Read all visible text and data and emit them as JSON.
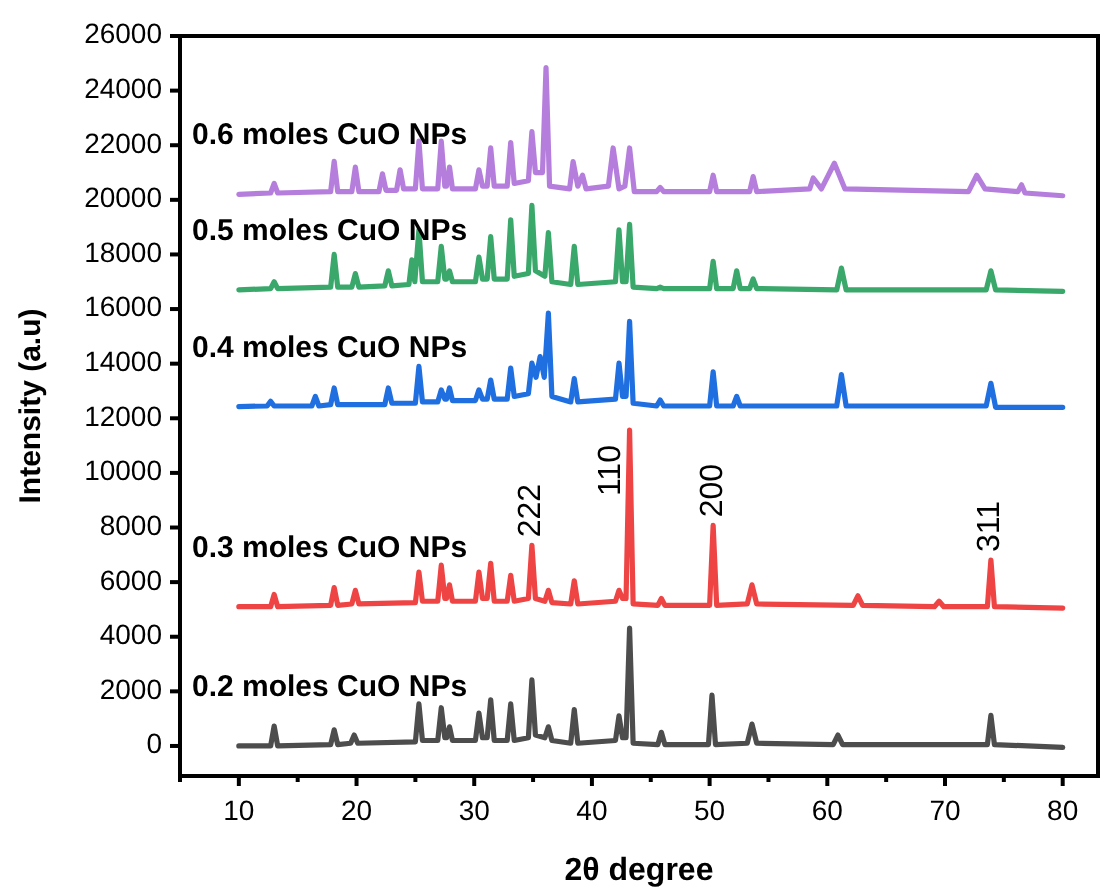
{
  "chart_data": {
    "type": "line",
    "xlabel": "2θ degree",
    "ylabel": "Intensity (a.u)",
    "xlim": [
      5,
      83
    ],
    "ylim": [
      -1100,
      26000
    ],
    "xticks": [
      {
        "value": 5,
        "label": null
      },
      10,
      {
        "value": 15,
        "label": null
      },
      20,
      {
        "value": 25,
        "label": null
      },
      30,
      {
        "value": 35,
        "label": null
      },
      40,
      {
        "value": 45,
        "label": null
      },
      50,
      {
        "value": 55,
        "label": null
      },
      60,
      {
        "value": 65,
        "label": null
      },
      70,
      {
        "value": 75,
        "label": null
      },
      80
    ],
    "yticks": [
      0,
      2000,
      4000,
      6000,
      8000,
      10000,
      12000,
      14000,
      16000,
      18000,
      20000,
      22000,
      24000,
      26000
    ],
    "grid": false,
    "legend": false,
    "marker": "none",
    "line_style": "solid",
    "series": [
      {
        "name": "0.2 moles CuO NPs",
        "color": "#4d4d4d",
        "x": [
          10,
          12.7,
          13,
          13.3,
          17.8,
          18.1,
          18.4,
          19.5,
          19.8,
          20.1,
          25,
          25.3,
          25.6,
          26.9,
          27.2,
          27.5,
          27.65,
          27.9,
          28.15,
          30.1,
          30.4,
          30.7,
          31.1,
          31.4,
          31.7,
          32.8,
          33.1,
          33.4,
          34.6,
          34.9,
          35.2,
          36,
          36.3,
          36.6,
          38.2,
          38.5,
          38.8,
          42,
          42.3,
          42.6,
          42.9,
          43.2,
          43.5,
          45.6,
          45.9,
          46.2,
          49.9,
          50.2,
          50.5,
          53.2,
          53.6,
          54,
          60.5,
          60.9,
          61.3,
          73.6,
          73.9,
          74.2,
          80
        ],
        "values": [
          0,
          0,
          730,
          0,
          50,
          590,
          50,
          100,
          400,
          100,
          150,
          1540,
          200,
          200,
          1400,
          300,
          300,
          700,
          200,
          200,
          1200,
          300,
          300,
          1690,
          200,
          200,
          1540,
          200,
          300,
          2420,
          400,
          300,
          700,
          200,
          100,
          1330,
          100,
          200,
          1100,
          300,
          300,
          4320,
          100,
          50,
          500,
          50,
          50,
          1860,
          50,
          100,
          800,
          100,
          50,
          400,
          50,
          50,
          1120,
          50,
          -50
        ]
      },
      {
        "name": "0.3 moles CuO NPs",
        "color": "#ef4444",
        "x": [
          10,
          12.7,
          13,
          13.3,
          17.8,
          18.1,
          18.4,
          19.6,
          19.9,
          20.2,
          25,
          25.3,
          25.6,
          26.9,
          27.2,
          27.5,
          27.65,
          27.9,
          28.15,
          30.1,
          30.4,
          30.7,
          31.1,
          31.4,
          31.7,
          32.8,
          33.1,
          33.4,
          34.6,
          34.9,
          35.2,
          36,
          36.3,
          36.6,
          38.2,
          38.5,
          38.8,
          42,
          42.3,
          42.6,
          42.9,
          43.2,
          43.5,
          45.6,
          45.9,
          46.2,
          50,
          50.3,
          50.6,
          53.2,
          53.6,
          54,
          62.2,
          62.6,
          63,
          69.1,
          69.5,
          69.9,
          73.6,
          73.9,
          74.2,
          80
        ],
        "values": [
          5100,
          5100,
          5550,
          5100,
          5150,
          5800,
          5150,
          5200,
          5700,
          5200,
          5250,
          6370,
          5300,
          5300,
          6620,
          5400,
          5400,
          5900,
          5300,
          5300,
          6370,
          5400,
          5400,
          6690,
          5300,
          5300,
          6250,
          5300,
          5400,
          7350,
          5400,
          5300,
          5700,
          5250,
          5200,
          6050,
          5200,
          5300,
          5700,
          5400,
          5400,
          11570,
          5200,
          5150,
          5400,
          5150,
          5150,
          8080,
          5150,
          5200,
          5900,
          5200,
          5150,
          5500,
          5150,
          5100,
          5300,
          5100,
          5100,
          6810,
          5100,
          5050
        ]
      },
      {
        "name": "0.4 moles CuO NPs",
        "color": "#1f6fe0",
        "x": [
          10,
          12.4,
          12.7,
          13,
          16.2,
          16.5,
          16.8,
          17.8,
          18.1,
          18.4,
          22.4,
          22.7,
          23,
          25,
          25.3,
          25.6,
          26.9,
          27.2,
          27.5,
          27.65,
          27.9,
          28.15,
          30.1,
          30.4,
          30.7,
          31.1,
          31.4,
          31.7,
          32.8,
          33.1,
          33.4,
          34.6,
          34.9,
          35.25,
          35.6,
          35.95,
          36.3,
          36.6,
          38.2,
          38.5,
          38.8,
          42,
          42.3,
          42.6,
          42.9,
          43.2,
          43.5,
          45.5,
          45.8,
          46.1,
          50,
          50.3,
          50.6,
          52,
          52.3,
          52.6,
          60.8,
          61.2,
          61.6,
          73.5,
          73.9,
          74.3,
          80
        ],
        "values": [
          12430,
          12450,
          12620,
          12450,
          12450,
          12800,
          12450,
          12500,
          13110,
          12500,
          12500,
          13110,
          12550,
          12550,
          13900,
          12600,
          12600,
          13040,
          12700,
          12700,
          13110,
          12650,
          12650,
          13040,
          12700,
          12700,
          13400,
          12700,
          12700,
          13840,
          12800,
          12900,
          14020,
          13500,
          14260,
          13500,
          15850,
          12800,
          12600,
          13450,
          12600,
          12700,
          14020,
          12800,
          12800,
          15550,
          12550,
          12450,
          12670,
          12450,
          12450,
          13700,
          12450,
          12450,
          12800,
          12450,
          12450,
          13600,
          12450,
          12450,
          13280,
          12400,
          12400
        ]
      },
      {
        "name": "0.5 moles CuO NPs",
        "color": "#3aa86b",
        "x": [
          10,
          12.7,
          13,
          13.3,
          17.8,
          18.1,
          18.4,
          19.6,
          19.9,
          20.2,
          22.4,
          22.7,
          23,
          24.45,
          24.7,
          24.95,
          25.3,
          25.6,
          26.9,
          27.2,
          27.5,
          27.65,
          27.9,
          28.15,
          30.1,
          30.4,
          30.7,
          31.1,
          31.4,
          31.7,
          32.8,
          33.1,
          33.4,
          34.6,
          34.9,
          35.2,
          36,
          36.3,
          36.6,
          38.2,
          38.5,
          38.8,
          42,
          42.3,
          42.6,
          42.9,
          43.2,
          43.5,
          45.5,
          45.8,
          46.1,
          50,
          50.3,
          50.6,
          52,
          52.3,
          52.6,
          53.4,
          53.7,
          54,
          60.8,
          61.2,
          61.6,
          73.5,
          73.9,
          74.3,
          80
        ],
        "values": [
          16700,
          16750,
          17000,
          16750,
          16800,
          18000,
          16800,
          16800,
          17300,
          16800,
          16850,
          17400,
          16850,
          16900,
          17800,
          17000,
          18900,
          17000,
          17000,
          18300,
          17100,
          17100,
          17400,
          17000,
          17000,
          17900,
          17100,
          17100,
          18650,
          17100,
          17100,
          19270,
          17200,
          17300,
          19800,
          17400,
          17200,
          18800,
          17000,
          16900,
          18300,
          16900,
          17000,
          18900,
          17000,
          17000,
          19100,
          16800,
          16750,
          16800,
          16750,
          16750,
          17750,
          16750,
          16750,
          17400,
          16750,
          16750,
          17100,
          16750,
          16700,
          17500,
          16700,
          16700,
          17400,
          16700,
          16650
        ]
      },
      {
        "name": "0.6 moles CuO NPs",
        "color": "#b57edc",
        "x": [
          10,
          12.7,
          13,
          13.3,
          17.8,
          18.1,
          18.4,
          19.6,
          19.9,
          20.2,
          21.9,
          22.2,
          22.5,
          23.4,
          23.7,
          24,
          25,
          25.3,
          25.6,
          26.9,
          27.2,
          27.5,
          27.65,
          27.9,
          28.15,
          30.1,
          30.4,
          30.7,
          31.1,
          31.4,
          31.7,
          32.8,
          33.1,
          33.4,
          34.6,
          34.9,
          35.2,
          35.8,
          36.1,
          36.4,
          38.1,
          38.4,
          38.8,
          39.2,
          39.5,
          41.4,
          41.8,
          42.3,
          42.8,
          43.2,
          43.6,
          45.5,
          45.8,
          46.1,
          50,
          50.3,
          50.6,
          53.4,
          53.7,
          54,
          58.5,
          58.8,
          59.5,
          60.6,
          61.5,
          72,
          72.7,
          73.4,
          76.2,
          76.5,
          76.8,
          80
        ],
        "values": [
          20200,
          20250,
          20600,
          20250,
          20300,
          21410,
          20300,
          20300,
          21200,
          20300,
          20300,
          20950,
          20350,
          20350,
          21100,
          20400,
          20400,
          22150,
          20400,
          20400,
          22150,
          20500,
          20500,
          21200,
          20400,
          20400,
          21100,
          20500,
          20500,
          21900,
          20500,
          20500,
          22100,
          20600,
          20700,
          22500,
          21000,
          21000,
          24840,
          20500,
          20400,
          21400,
          20500,
          20900,
          20400,
          20500,
          21900,
          20400,
          20500,
          21900,
          20300,
          20300,
          20450,
          20300,
          20300,
          20900,
          20300,
          20300,
          20850,
          20300,
          20400,
          20800,
          20400,
          21340,
          20400,
          20300,
          20900,
          20400,
          20300,
          20550,
          20250,
          20150
        ]
      }
    ],
    "annotations": [
      {
        "text": "222",
        "x": 34.9,
        "y": 7350
      },
      {
        "text": "110",
        "x": 43.2,
        "y": 11570
      },
      {
        "text": "200",
        "x": 50.3,
        "y": 8080
      },
      {
        "text": "311",
        "x": 73.9,
        "y": 6810
      }
    ]
  }
}
